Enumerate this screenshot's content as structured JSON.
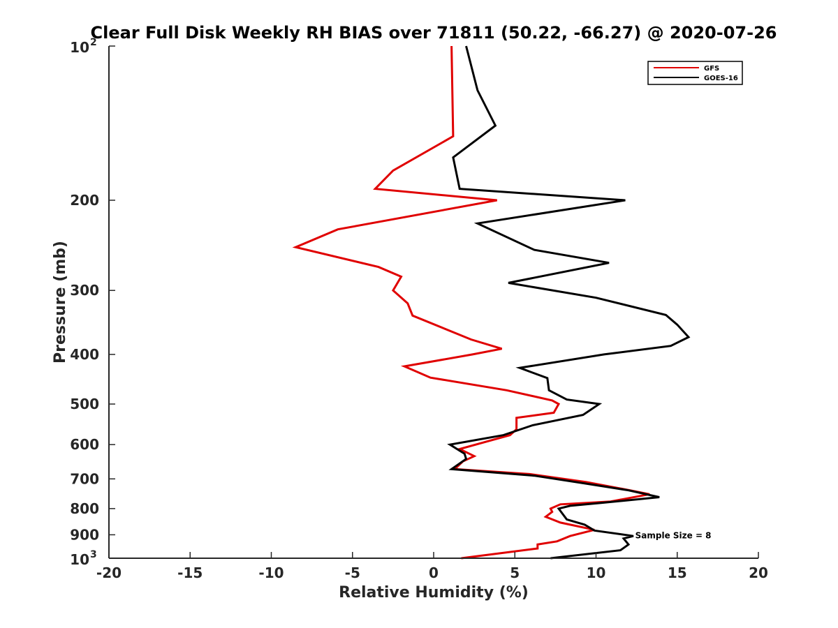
{
  "chart_data": {
    "type": "line",
    "title": "Clear Full Disk Weekly RH BIAS over 71811 (50.22, -66.27) @ 2020-07-26",
    "xlabel": "Relative Humidity (%)",
    "ylabel": "Pressure (mb)",
    "xlim": [
      -20,
      20
    ],
    "ylim": [
      100,
      1000
    ],
    "y_scale": "log",
    "y_reversed": true,
    "grid": false,
    "legend_position": "top-right",
    "x_ticks": [
      "-20",
      "-15",
      "-10",
      "-5",
      "0",
      "5",
      "10",
      "15",
      "20"
    ],
    "y_ticks": [
      {
        "value": 100,
        "base": "10",
        "exp": "2"
      },
      {
        "value": 200,
        "label": "200"
      },
      {
        "value": 300,
        "label": "300"
      },
      {
        "value": 400,
        "label": "400"
      },
      {
        "value": 500,
        "label": "500"
      },
      {
        "value": 600,
        "label": "600"
      },
      {
        "value": 700,
        "label": "700"
      },
      {
        "value": 800,
        "label": "800"
      },
      {
        "value": 900,
        "label": "900"
      },
      {
        "value": 1000,
        "base": "10",
        "exp": "3"
      }
    ],
    "annotation": {
      "text": "Sample Size = 8",
      "x": 12.5,
      "y": 900
    },
    "series": [
      {
        "name": "GFS",
        "color": "#e00000",
        "points": [
          [
            1.1,
            100
          ],
          [
            1.2,
            150
          ],
          [
            -2.5,
            175
          ],
          [
            -3.6,
            190
          ],
          [
            3.9,
            200
          ],
          [
            -5.9,
            228
          ],
          [
            -8.5,
            247
          ],
          [
            -3.4,
            270
          ],
          [
            -2.0,
            282
          ],
          [
            -2.5,
            300
          ],
          [
            -1.6,
            318
          ],
          [
            -1.3,
            336
          ],
          [
            2.3,
            374
          ],
          [
            4.2,
            390
          ],
          [
            2.4,
            400
          ],
          [
            -1.8,
            422
          ],
          [
            -0.2,
            444
          ],
          [
            4.5,
            470
          ],
          [
            7.3,
            492
          ],
          [
            7.7,
            500
          ],
          [
            7.4,
            520
          ],
          [
            5.1,
            532
          ],
          [
            5.1,
            560
          ],
          [
            4.7,
            575
          ],
          [
            1.6,
            612
          ],
          [
            2.5,
            632
          ],
          [
            1.8,
            647
          ],
          [
            1.3,
            670
          ],
          [
            5.9,
            685
          ],
          [
            9.4,
            710
          ],
          [
            12.1,
            737
          ],
          [
            13.3,
            750
          ],
          [
            10.9,
            775
          ],
          [
            7.8,
            785
          ],
          [
            7.2,
            800
          ],
          [
            7.3,
            812
          ],
          [
            6.9,
            830
          ],
          [
            7.8,
            852
          ],
          [
            9.9,
            880
          ],
          [
            8.4,
            905
          ],
          [
            7.6,
            927
          ],
          [
            6.4,
            940
          ],
          [
            6.4,
            957
          ],
          [
            1.7,
            1000
          ]
        ]
      },
      {
        "name": "GOES-16",
        "color": "#000000",
        "points": [
          [
            2.0,
            100
          ],
          [
            2.7,
            122
          ],
          [
            3.8,
            143
          ],
          [
            1.2,
            165
          ],
          [
            1.6,
            190
          ],
          [
            11.8,
            200
          ],
          [
            2.7,
            222
          ],
          [
            6.2,
            250
          ],
          [
            10.8,
            265
          ],
          [
            4.6,
            290
          ],
          [
            10.0,
            310
          ],
          [
            14.3,
            335
          ],
          [
            15.0,
            350
          ],
          [
            15.7,
            370
          ],
          [
            14.6,
            385
          ],
          [
            10.5,
            400
          ],
          [
            5.3,
            425
          ],
          [
            7.0,
            445
          ],
          [
            7.1,
            470
          ],
          [
            8.2,
            490
          ],
          [
            10.2,
            500
          ],
          [
            9.2,
            525
          ],
          [
            6.1,
            550
          ],
          [
            4.3,
            575
          ],
          [
            1.0,
            600
          ],
          [
            1.9,
            625
          ],
          [
            2.0,
            640
          ],
          [
            1.1,
            670
          ],
          [
            6.2,
            690
          ],
          [
            9.4,
            715
          ],
          [
            12.0,
            737
          ],
          [
            13.9,
            760
          ],
          [
            10.3,
            780
          ],
          [
            8.4,
            790
          ],
          [
            7.7,
            800
          ],
          [
            8.2,
            840
          ],
          [
            9.3,
            860
          ],
          [
            9.9,
            883
          ],
          [
            12.3,
            905
          ],
          [
            11.7,
            915
          ],
          [
            12.0,
            940
          ],
          [
            11.5,
            965
          ],
          [
            7.2,
            1000
          ]
        ]
      }
    ]
  }
}
